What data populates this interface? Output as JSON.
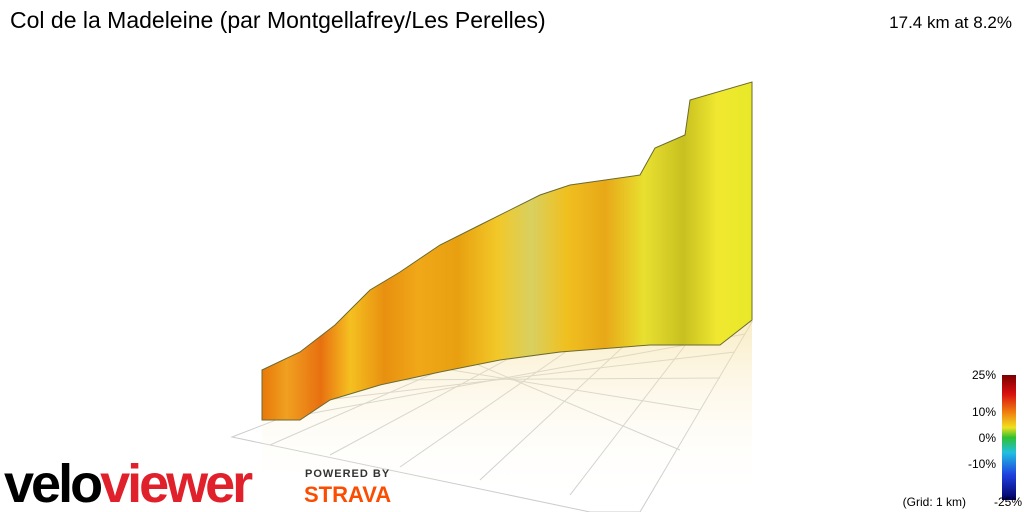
{
  "header": {
    "title": "Col de la Madeleine (par Montgellafrey/Les Perelles)",
    "summary": "17.4 km at 8.2%"
  },
  "legend": {
    "labels": [
      "25%",
      "10%",
      "0%",
      "-10%",
      "-25%"
    ],
    "grid_note": "(Grid: 1 km)"
  },
  "branding": {
    "logo_prefix": "velo",
    "logo_suffix": "viewer",
    "powered_by": "POWERED BY",
    "partner": "STRAVA"
  }
}
